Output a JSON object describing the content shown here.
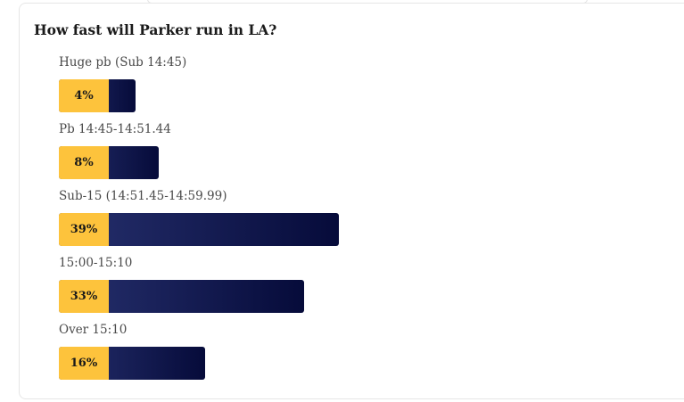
{
  "poll": {
    "question": "How fast will Parker run in LA?",
    "options": [
      {
        "label": "Huge pb (Sub 14:45)",
        "percent": 4,
        "percent_label": "4%"
      },
      {
        "label": "Pb 14:45-14:51.44",
        "percent": 8,
        "percent_label": "8%"
      },
      {
        "label": "Sub-15 (14:51.45-14:59.99)",
        "percent": 39,
        "percent_label": "39%"
      },
      {
        "label": "15:00-15:10",
        "percent": 33,
        "percent_label": "33%"
      },
      {
        "label": "Over 15:10",
        "percent": 16,
        "percent_label": "16%"
      }
    ]
  }
}
